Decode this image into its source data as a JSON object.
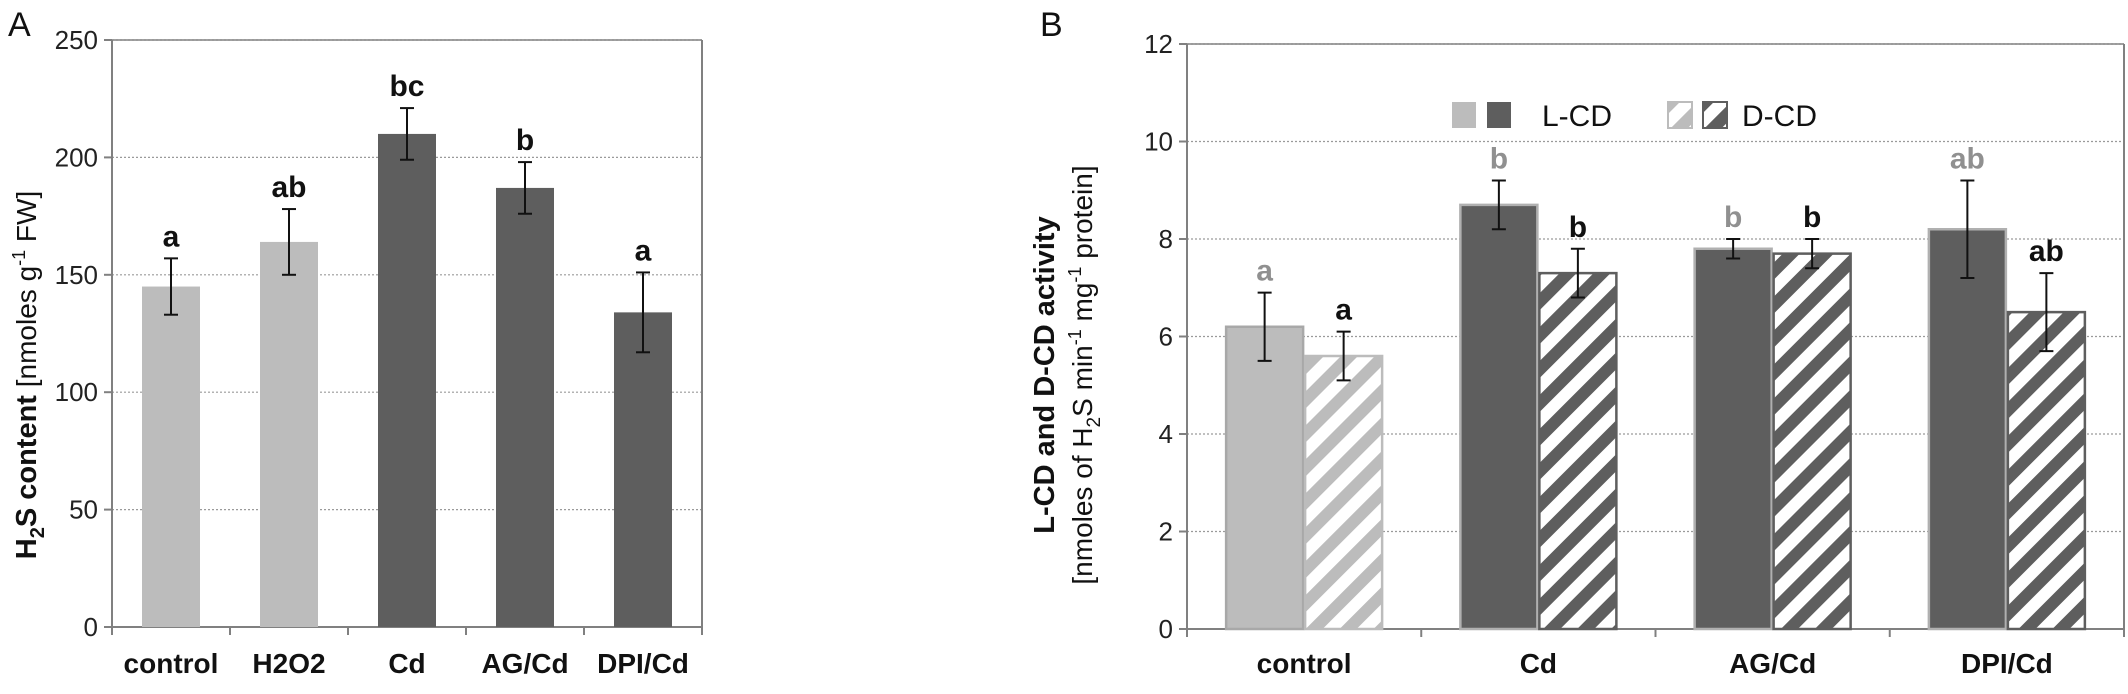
{
  "colors": {
    "light": "#bcbcbc",
    "dark": "#5e5e5e",
    "axis": "#808080",
    "grid": "#9a9a9a",
    "sig_light": "#909090",
    "sig_dark": "#111111"
  },
  "panel_a": {
    "letter": "A",
    "ylabel_bold_prefix": "H",
    "ylabel_bold_sub": "2",
    "ylabel_bold_suffix": "S content",
    "ylabel_normal_prefix": " [nmoles g",
    "ylabel_normal_sup": "-1",
    "ylabel_normal_suffix": " FW]"
  },
  "panel_b": {
    "letter": "B",
    "ylabel_line1": "L-CD and D-CD activity",
    "ylabel_line2_prefix": "[nmoles of H",
    "ylabel_line2_sub": "2",
    "ylabel_line2_mid1": "S min",
    "ylabel_line2_sup1": "-1",
    "ylabel_line2_mid2": " mg",
    "ylabel_line2_sup2": "-1",
    "ylabel_line2_suffix": " protein]"
  },
  "chart_data": [
    {
      "type": "bar",
      "panel": "A",
      "categories": [
        "control",
        "H2O2",
        "Cd",
        "AG/Cd",
        "DPI/Cd"
      ],
      "values": [
        145,
        164,
        210,
        187,
        134
      ],
      "errors": [
        12,
        14,
        11,
        11,
        17
      ],
      "significance": [
        "a",
        "ab",
        "bc",
        "b",
        "a"
      ],
      "bar_shade": [
        "light",
        "light",
        "dark",
        "dark",
        "dark"
      ],
      "ylim": [
        0,
        250
      ],
      "yticks": [
        0,
        50,
        100,
        150,
        200,
        250
      ],
      "grid": "horizontal"
    },
    {
      "type": "bar",
      "panel": "B",
      "categories": [
        "control",
        "Cd",
        "AG/Cd",
        "DPI/Cd"
      ],
      "series": [
        {
          "name": "L-CD",
          "values": [
            6.2,
            8.7,
            7.8,
            8.2
          ],
          "errors": [
            0.7,
            0.5,
            0.2,
            1.0
          ],
          "significance": [
            "a",
            "b",
            "b",
            "ab"
          ]
        },
        {
          "name": "D-CD",
          "values": [
            5.6,
            7.3,
            7.7,
            6.5
          ],
          "errors": [
            0.5,
            0.5,
            0.3,
            0.8
          ],
          "significance": [
            "a",
            "b",
            "b",
            "ab"
          ]
        }
      ],
      "shade": [
        "light",
        "dark",
        "dark",
        "dark"
      ],
      "ylim": [
        0,
        12
      ],
      "yticks": [
        0,
        2,
        4,
        6,
        8,
        10,
        12
      ],
      "grid": "horizontal",
      "legend_position": "top-center"
    }
  ]
}
